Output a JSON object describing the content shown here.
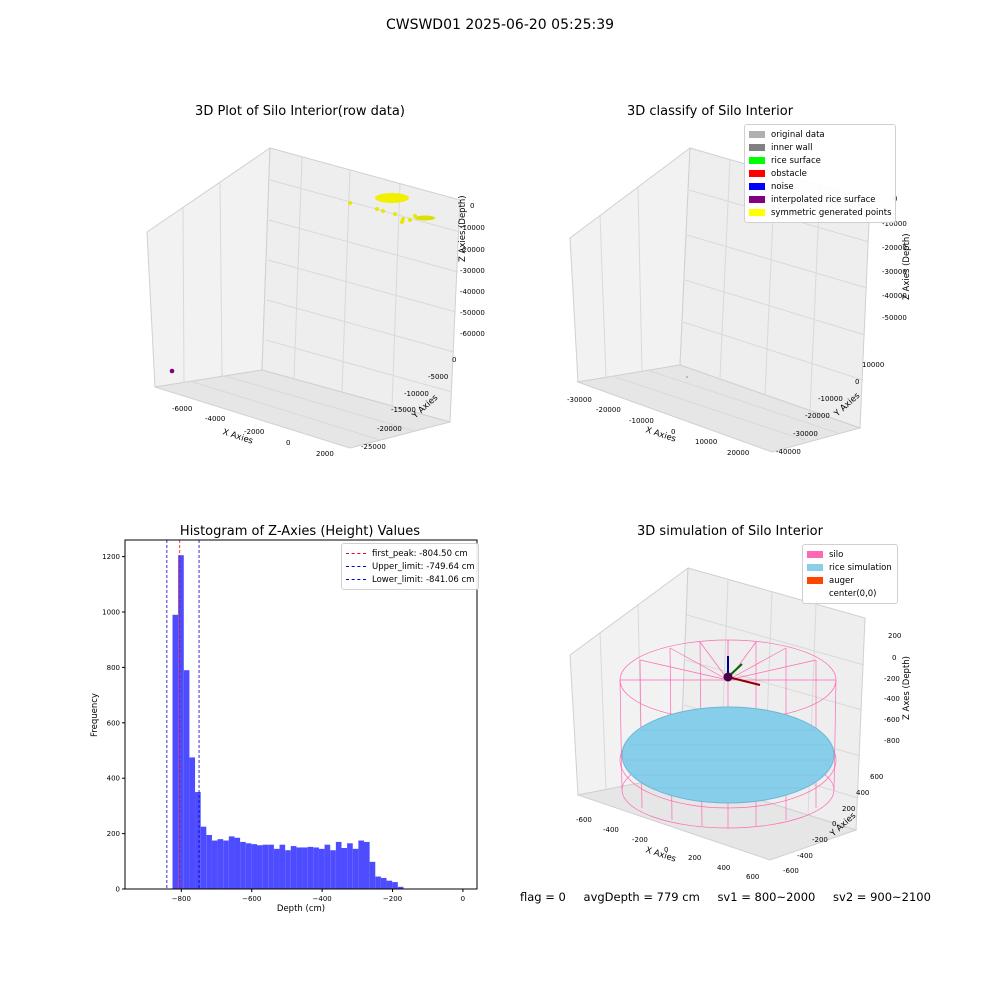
{
  "suptitle": "CWSWD01 2025-06-20 05:25:39",
  "panels": {
    "raw": {
      "title": "3D Plot of Silo Interior(row data)",
      "xlabel": "X Axies",
      "ylabel": "Y Axies",
      "zlabel": "Z Axies (Depth)",
      "xticks": [
        "-6000",
        "-4000",
        "-2000",
        "0",
        "2000"
      ],
      "yticks": [
        "0",
        "-5000",
        "-10000",
        "-15000",
        "-20000",
        "-25000"
      ],
      "zticks": [
        "0",
        "-10000",
        "-20000",
        "-30000",
        "-40000",
        "-50000",
        "-60000"
      ]
    },
    "classify": {
      "title": "3D classify of Silo Interior",
      "xlabel": "X Axies",
      "ylabel": "Y Axies",
      "zlabel": "Z Axies (Depth)",
      "xticks": [
        "-30000",
        "-20000",
        "-10000",
        "0",
        "10000",
        "20000"
      ],
      "yticks": [
        "10000",
        "0",
        "-10000",
        "-20000",
        "-30000",
        "-40000"
      ],
      "zticks": [
        "0",
        "-10000",
        "-20000",
        "-30000",
        "-40000",
        "-50000"
      ],
      "legend": [
        {
          "label": "original data",
          "color": "#b0b0b0"
        },
        {
          "label": "inner wall",
          "color": "#808080"
        },
        {
          "label": "rice surface",
          "color": "#00ff00"
        },
        {
          "label": "obstacle",
          "color": "#ff0000"
        },
        {
          "label": "noise",
          "color": "#0000ff"
        },
        {
          "label": "interpolated rice surface",
          "color": "#800080"
        },
        {
          "label": "symmetric generated points",
          "color": "#ffff00"
        }
      ]
    },
    "histogram": {
      "title": "Histogram of Z-Axies (Height) Values",
      "legend": [
        {
          "label": "first_peak: -804.50 cm",
          "color": "#ff0000"
        },
        {
          "label": "Upper_limit: -749.64 cm",
          "color": "#0000cc"
        },
        {
          "label": "Lower_limit: -841.06 cm",
          "color": "#0000cc"
        }
      ]
    },
    "simulation": {
      "title": "3D simulation of Silo Interior",
      "xlabel": "X Axies",
      "ylabel": "Y Axies",
      "zlabel": "Z Axes (Depth)",
      "xticks": [
        "-600",
        "-400",
        "-200",
        "0",
        "200",
        "400",
        "600"
      ],
      "yticks": [
        "600",
        "400",
        "200",
        "0",
        "-200",
        "-400",
        "-600"
      ],
      "zticks": [
        "200",
        "0",
        "-200",
        "-400",
        "-600",
        "-800"
      ],
      "legend": [
        {
          "label": "silo",
          "color": "#ff69b4"
        },
        {
          "label": "rice simulation",
          "color": "#87ceeb"
        },
        {
          "label": "auger",
          "color": "#ff4500"
        },
        {
          "label": "center(0,0)",
          "color": "#ffffff"
        }
      ]
    }
  },
  "footer": {
    "flag": "flag = 0",
    "avg": "avgDepth = 779 cm",
    "sv1": "sv1 = 800~2000",
    "sv2": "sv2 = 900~2100"
  },
  "colors": {
    "bars": "#4d4dff",
    "grid": "#d9d9d9",
    "pane": "#f2f2f2",
    "silo": "#ff69b4",
    "rice": "#87ceeb"
  },
  "chart_data": [
    {
      "type": "histogram",
      "title": "Histogram of Z-Axies (Height) Values",
      "xlabel": "Depth (cm)",
      "ylabel": "Frequency",
      "xlim": [
        -960,
        40
      ],
      "ylim": [
        0,
        1260
      ],
      "xticks": [
        -800,
        -600,
        -400,
        -200,
        0
      ],
      "yticks": [
        0,
        200,
        400,
        600,
        800,
        1000,
        1200
      ],
      "bin_edges_start": -825,
      "bin_width": 16,
      "values": [
        990,
        1205,
        790,
        475,
        350,
        225,
        195,
        175,
        180,
        175,
        190,
        185,
        170,
        165,
        162,
        158,
        160,
        160,
        145,
        160,
        140,
        155,
        150,
        150,
        152,
        150,
        145,
        160,
        140,
        170,
        148,
        165,
        145,
        175,
        170,
        98,
        45,
        40,
        30,
        25,
        8
      ],
      "vlines": [
        {
          "name": "first_peak",
          "x": -804.5,
          "color": "#ff0000"
        },
        {
          "name": "Upper_limit",
          "x": -749.64,
          "color": "#0000cc"
        },
        {
          "name": "Lower_limit",
          "x": -841.06,
          "color": "#0000cc"
        }
      ]
    }
  ]
}
